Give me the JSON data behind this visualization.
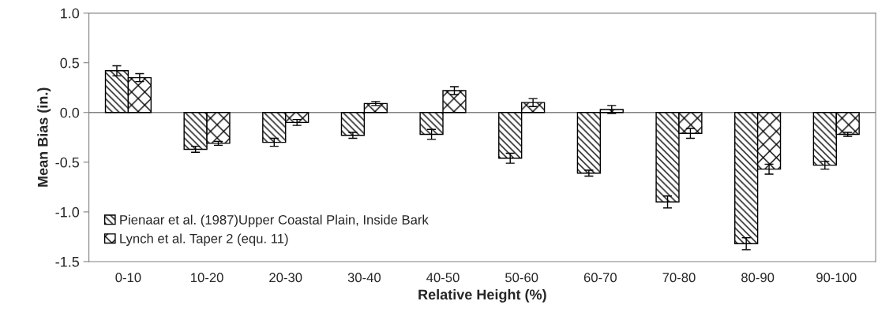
{
  "chart_data": {
    "type": "bar",
    "xlabel": "Relative Height (%)",
    "ylabel": "Mean Bias (in.)",
    "categories": [
      "0-10",
      "10-20",
      "20-30",
      "30-40",
      "40-50",
      "50-60",
      "60-70",
      "70-80",
      "80-90",
      "90-100"
    ],
    "series": [
      {
        "name": "Pienaar et al. (1987)Upper Coastal Plain, Inside Bark",
        "color": "#000000",
        "values": [
          0.42,
          -0.37,
          -0.3,
          -0.23,
          -0.22,
          -0.46,
          -0.61,
          -0.9,
          -1.32,
          -0.53
        ],
        "errors": [
          0.05,
          0.03,
          0.04,
          0.03,
          0.05,
          0.05,
          0.03,
          0.06,
          0.06,
          0.04
        ]
      },
      {
        "name": "Lynch et al. Taper 2 (equ. 11)",
        "color": "#000000",
        "values": [
          0.35,
          -0.31,
          -0.1,
          0.09,
          0.22,
          0.1,
          0.03,
          -0.21,
          -0.57,
          -0.22
        ],
        "errors": [
          0.04,
          0.02,
          0.03,
          0.02,
          0.04,
          0.04,
          0.04,
          0.05,
          0.05,
          0.02
        ]
      }
    ],
    "ylim": [
      -1.5,
      1.0
    ],
    "yticks": [
      {
        "value": -1.5,
        "label": "-1.5"
      },
      {
        "value": -1.0,
        "label": "-1.0"
      },
      {
        "value": -0.5,
        "label": "-0.5"
      },
      {
        "value": 0.0,
        "label": "0.0"
      },
      {
        "value": 0.5,
        "label": "0.5"
      },
      {
        "value": 1.0,
        "label": "1.0"
      }
    ],
    "legend": "bottom left"
  }
}
